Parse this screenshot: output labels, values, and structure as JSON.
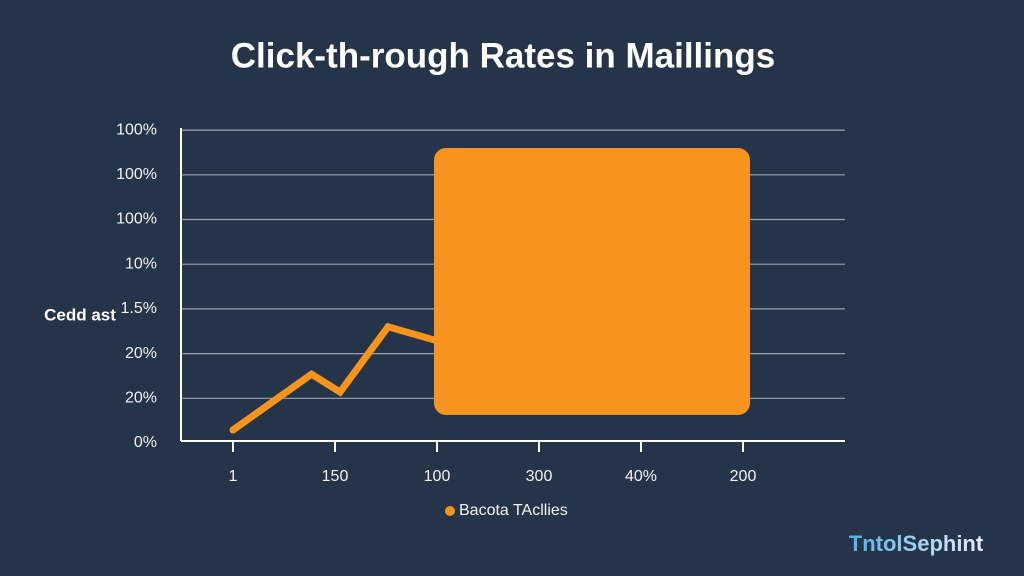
{
  "chart_data": {
    "type": "line",
    "title": "Click-th-rough Rates in Maillings",
    "y_label": "Cedd ast",
    "categories": [
      "1",
      "150",
      "100",
      "300",
      "40%",
      "200"
    ],
    "y_categories": [
      "0%",
      "20%",
      "20%",
      "1.5%",
      "10%",
      "100%",
      "100%",
      "100%"
    ],
    "series": [
      {
        "name": "Bacota TAcllies",
        "color": "#f7941d",
        "x": [
          0,
          0.77,
          1.05,
          1.52,
          1.98
        ],
        "values": [
          0.29,
          1.54,
          1.14,
          2.6,
          2.3
        ]
      }
    ]
  },
  "watermark": "TntolSephint"
}
